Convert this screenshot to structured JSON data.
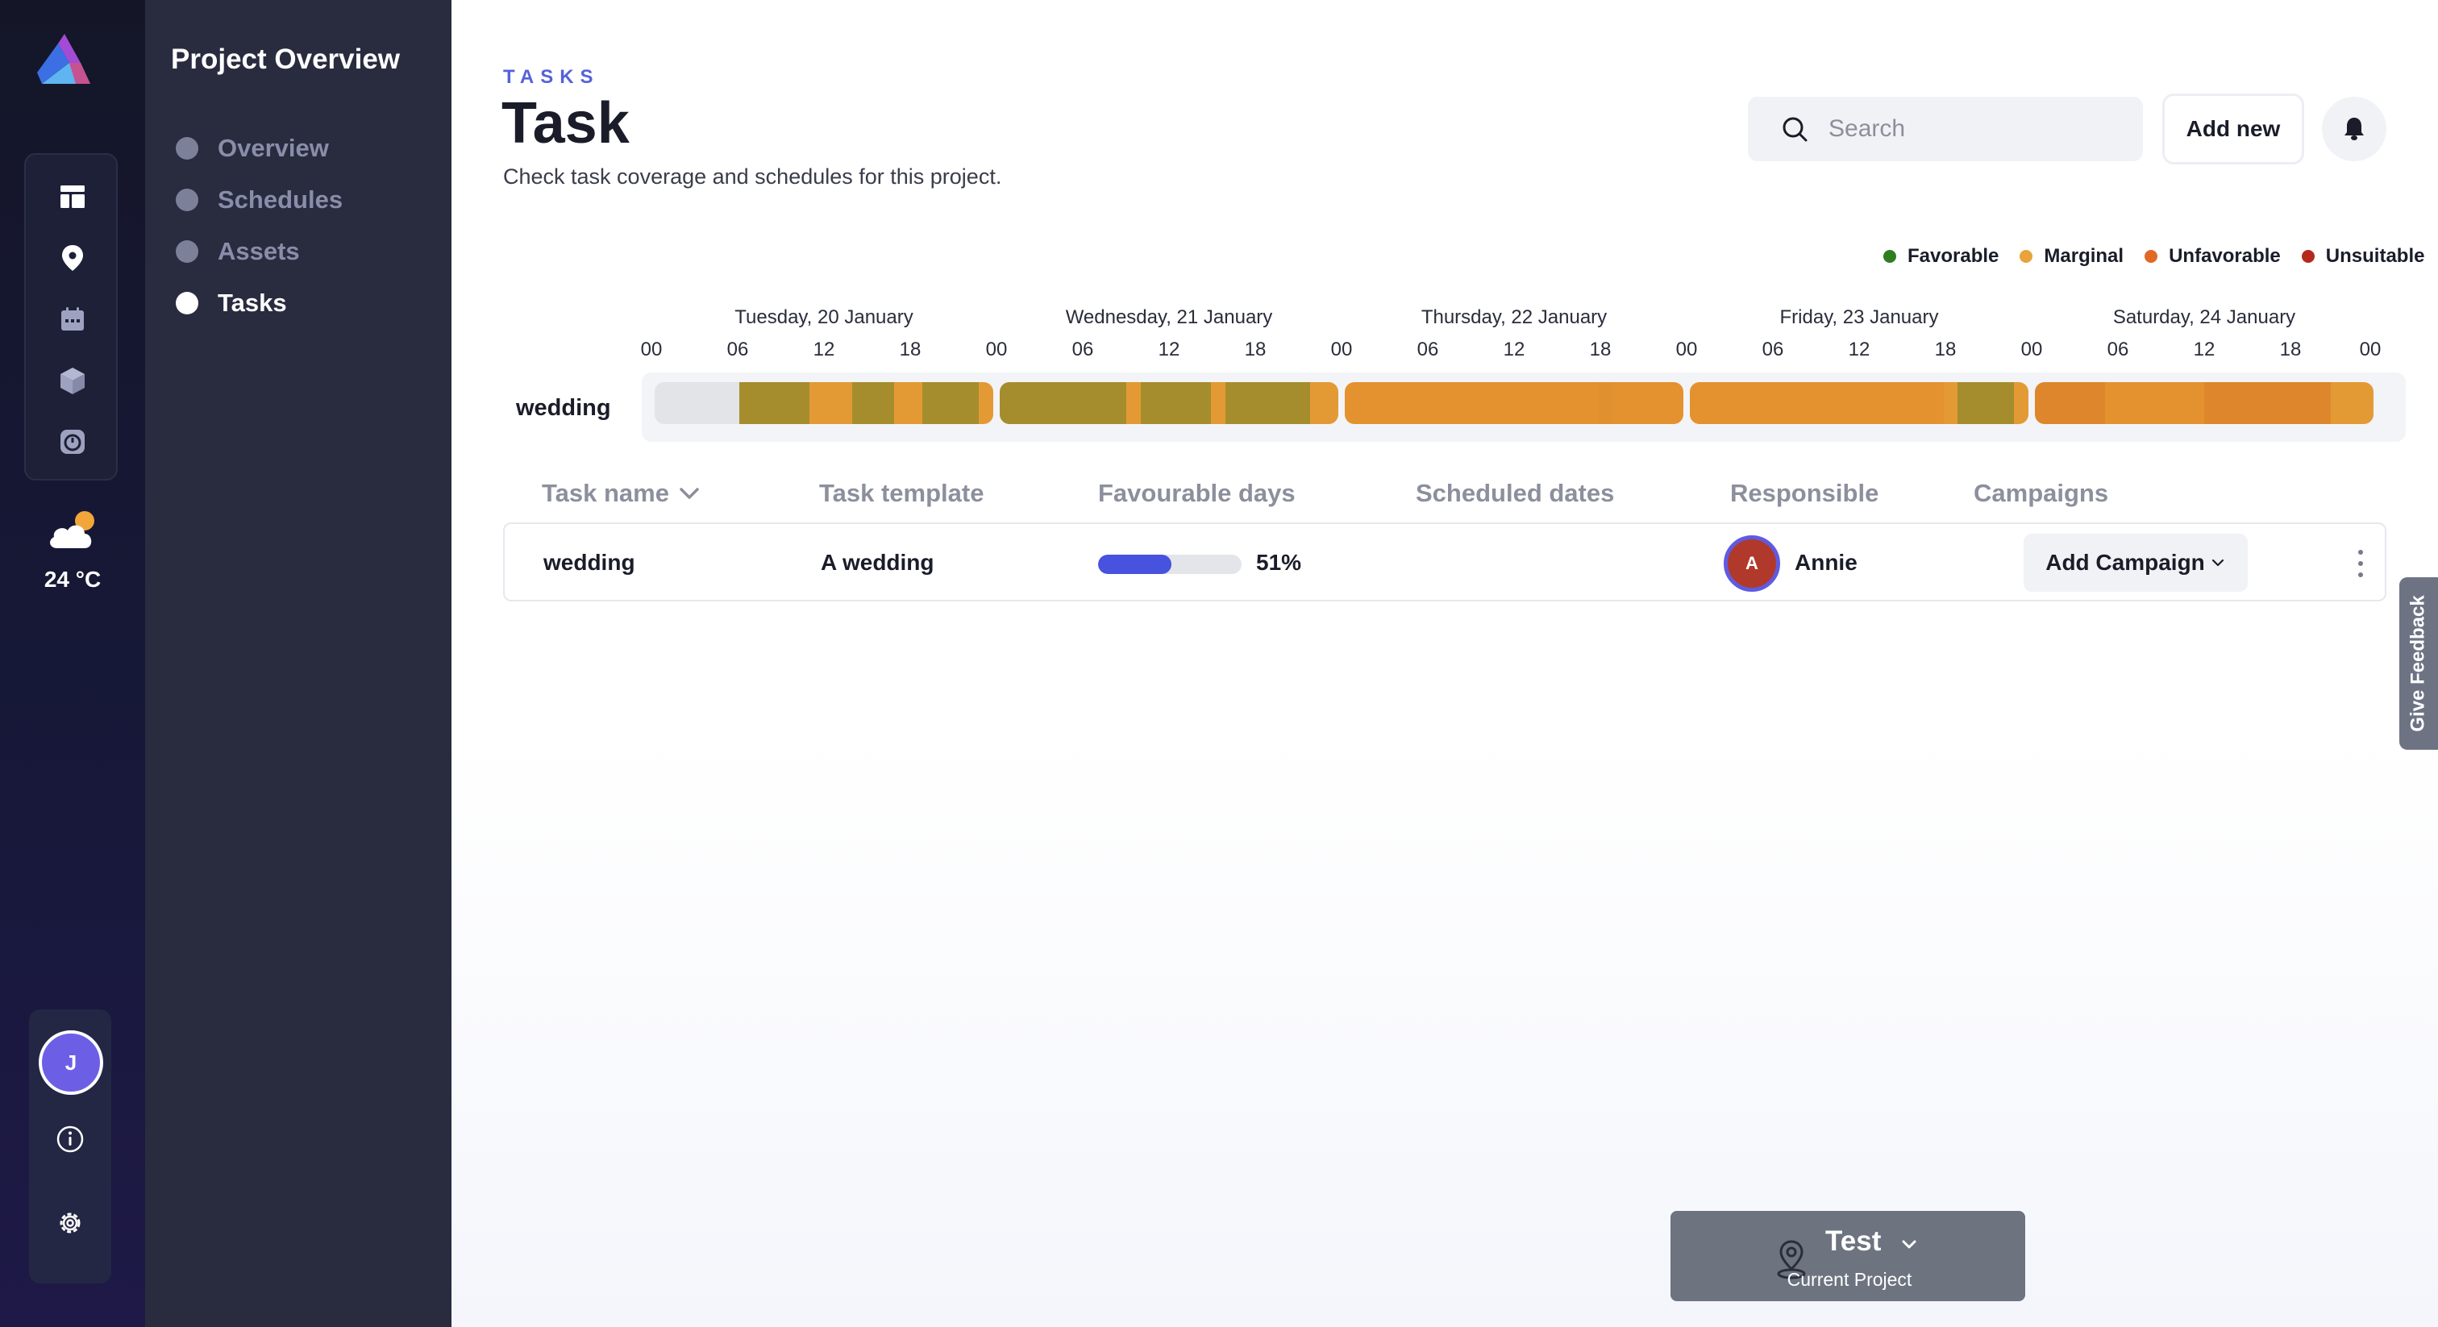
{
  "rail": {
    "items": [
      {
        "name": "rail-dashboard",
        "icon": "dashboard-icon"
      },
      {
        "name": "rail-location",
        "icon": "location-pin-icon"
      },
      {
        "name": "rail-calendar",
        "icon": "calendar-icon"
      },
      {
        "name": "rail-assets",
        "icon": "cube-icon"
      },
      {
        "name": "rail-history",
        "icon": "timer-icon"
      }
    ],
    "weather": {
      "icon": "partly-cloudy-icon",
      "temp": "24 °C"
    },
    "user_initial": "J"
  },
  "section": {
    "title": "Project Overview",
    "items": [
      {
        "label": "Overview",
        "active": false
      },
      {
        "label": "Schedules",
        "active": false
      },
      {
        "label": "Assets",
        "active": false
      },
      {
        "label": "Tasks",
        "active": true
      }
    ]
  },
  "header": {
    "eyebrow": "TASKS",
    "title": "Task",
    "subtitle": "Check task coverage and schedules for this project.",
    "search_placeholder": "Search",
    "search_value": "",
    "add_new_label": "Add new"
  },
  "colors": {
    "favorable": "#2f7d1e",
    "marginal": "#e8a33c",
    "unfavorable": "#e06a24",
    "unsuitable": "#b5291d",
    "accent": "#4752de"
  },
  "legend": [
    {
      "label": "Favorable",
      "color": "#2f7d1e"
    },
    {
      "label": "Marginal",
      "color": "#e8a33c"
    },
    {
      "label": "Unfavorable",
      "color": "#e06a24"
    },
    {
      "label": "Unsuitable",
      "color": "#b5291d"
    }
  ],
  "timeline": {
    "row_label": "wedding",
    "days": [
      {
        "label": "Tuesday, 20 January",
        "hours": [
          "00",
          "06",
          "12",
          "18"
        ]
      },
      {
        "label": "Wednesday, 21 January",
        "hours": [
          "00",
          "06",
          "12",
          "18"
        ]
      },
      {
        "label": "Thursday, 22 January",
        "hours": [
          "00",
          "06",
          "12",
          "18"
        ]
      },
      {
        "label": "Friday, 23 January",
        "hours": [
          "00",
          "06",
          "12",
          "18"
        ]
      },
      {
        "label": "Saturday, 24 January",
        "hours": [
          "00",
          "06",
          "12",
          "18"
        ]
      }
    ],
    "end_hour": "00",
    "segments": [
      [
        "#e3e4e8",
        "#e3e4e8",
        "#e3e4e8",
        "#e3e4e8",
        "#e3e4e8",
        "#e3e4e8",
        "#a58d2d",
        "#a58d2d",
        "#a58d2d",
        "#a58d2d",
        "#a58d2d",
        "#e39a35",
        "#e39a35",
        "#e39a35",
        "#a58d2d",
        "#a58d2d",
        "#a58d2d",
        "#e39a35",
        "#e39a35",
        "#a58d2d",
        "#a58d2d",
        "#a58d2d",
        "#a58d2d",
        "#e39a35"
      ],
      [
        "#a58d2d",
        "#a58d2d",
        "#a58d2d",
        "#a58d2d",
        "#a58d2d",
        "#a58d2d",
        "#a58d2d",
        "#a58d2d",
        "#a58d2d",
        "#e39a35",
        "#a58d2d",
        "#a58d2d",
        "#a58d2d",
        "#a58d2d",
        "#a58d2d",
        "#e39a35",
        "#a58d2d",
        "#a58d2d",
        "#a58d2d",
        "#a58d2d",
        "#a58d2d",
        "#a58d2d",
        "#e39a35",
        "#e39a35"
      ],
      [
        "#e3922f",
        "#e3922f",
        "#e3922f",
        "#e3922f",
        "#e3922f",
        "#e3922f",
        "#e3922f",
        "#e3922f",
        "#e3922f",
        "#e3922f",
        "#e3922f",
        "#e3922f",
        "#e3922f",
        "#e3922f",
        "#e3922f",
        "#e3922f",
        "#e3922f",
        "#e3922f",
        "#e0902e",
        "#e3922f",
        "#e3922f",
        "#e3922f",
        "#e3922f",
        "#e3922f"
      ],
      [
        "#e3922f",
        "#e3922f",
        "#e3922f",
        "#e3922f",
        "#e3922f",
        "#e3922f",
        "#e3922f",
        "#e3922f",
        "#e3922f",
        "#e3922f",
        "#e3922f",
        "#e3922f",
        "#e3922f",
        "#e3922f",
        "#e3922f",
        "#e3922f",
        "#e3922f",
        "#e3922f",
        "#e39a35",
        "#a58d2d",
        "#a58d2d",
        "#a58d2d",
        "#a58d2d",
        "#e39a35"
      ],
      [
        "#de862b",
        "#de862b",
        "#de862b",
        "#de862b",
        "#de862b",
        "#e3922f",
        "#e3922f",
        "#e3922f",
        "#e3922f",
        "#e3922f",
        "#e3922f",
        "#e3922f",
        "#de862b",
        "#de862b",
        "#de862b",
        "#de862b",
        "#de862b",
        "#de862b",
        "#de862b",
        "#de862b",
        "#de862b",
        "#e39a35",
        "#e39a35",
        "#e39a35"
      ]
    ]
  },
  "table": {
    "columns": [
      "Task name",
      "Task template",
      "Favourable days",
      "Scheduled dates",
      "Responsible",
      "Campaigns"
    ],
    "rows": [
      {
        "task_name": "wedding",
        "task_template": "A wedding",
        "favourable_pct": 51,
        "favourable_label": "51%",
        "scheduled_dates": "",
        "responsible_initial": "A",
        "responsible_name": "Annie",
        "campaign_label": "Add Campaign"
      }
    ]
  },
  "feedback_label": "Give Feedback",
  "project": {
    "name": "Test",
    "caption": "Current Project"
  }
}
